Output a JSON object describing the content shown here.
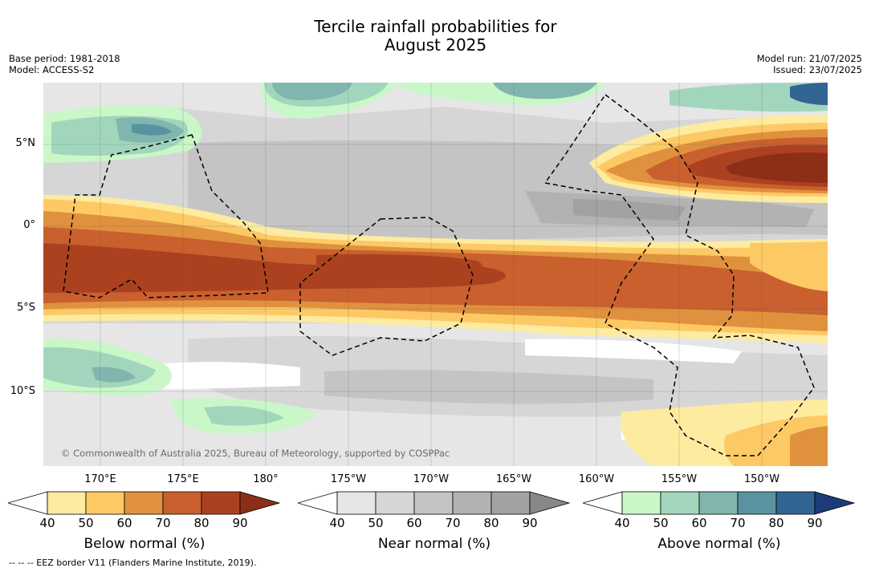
{
  "title_line1": "Tercile rainfall probabilities for",
  "title_line2": "August 2025",
  "base_period": "Base period: 1981-2018",
  "model": "Model: ACCESS-S2",
  "model_run": "Model run: 21/07/2025",
  "issued": "Issued: 23/07/2025",
  "lat_labels": [
    "5°N",
    "0°",
    "5°S",
    "10°S"
  ],
  "lon_labels": [
    "170°E",
    "175°E",
    "180°",
    "175°W",
    "170°W",
    "165°W",
    "160°W",
    "155°W",
    "150°W"
  ],
  "copyright": "© Commonwealth of Australia 2025, Bureau of Meteorology, supported by COSPPac",
  "colorbars": {
    "below": {
      "title": "Below normal (%)",
      "ticks": [
        "40",
        "50",
        "60",
        "70",
        "80",
        "90"
      ],
      "colors": [
        "#ffffff",
        "#fdeba0",
        "#fdc965",
        "#e0913e",
        "#c9602e",
        "#ac4120",
        "#8c2e18"
      ]
    },
    "near": {
      "title": "Near normal (%)",
      "ticks": [
        "40",
        "50",
        "60",
        "70",
        "80",
        "90"
      ],
      "colors": [
        "#ffffff",
        "#e6e6e6",
        "#d6d6d6",
        "#c4c4c4",
        "#b2b2b2",
        "#a2a2a2",
        "#888888"
      ]
    },
    "above": {
      "title": "Above normal (%)",
      "ticks": [
        "40",
        "50",
        "60",
        "70",
        "80",
        "90"
      ],
      "colors": [
        "#ffffff",
        "#c9f7c8",
        "#a2d6bc",
        "#80b6ad",
        "#5a93a0",
        "#326494",
        "#1b3c78"
      ]
    }
  },
  "eez_note": "--  --  -- EEZ border V11 (Flanders Marine Institute, 2019)."
}
